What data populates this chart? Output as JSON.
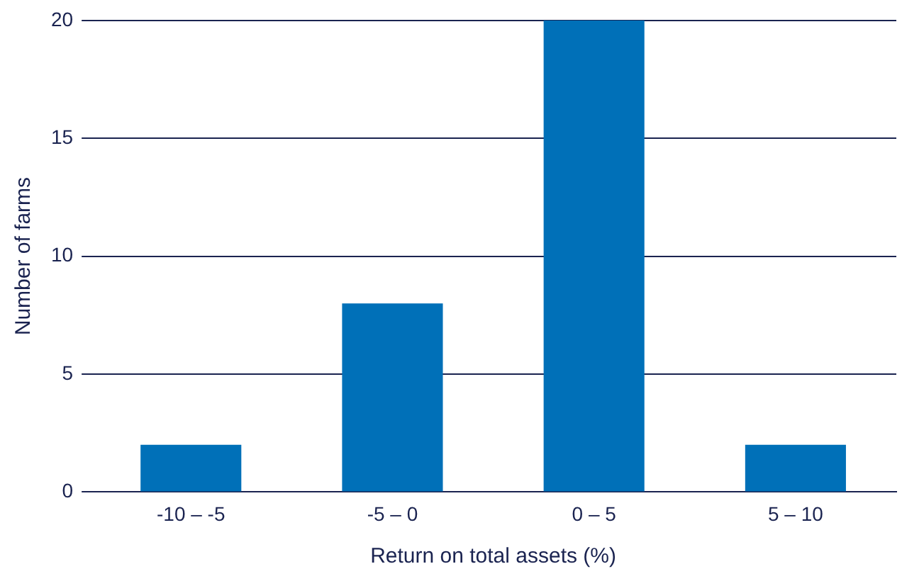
{
  "chart_data": {
    "type": "bar",
    "xlabel": "Return on total assets (%)",
    "ylabel": "Number of farms",
    "categories": [
      "-10 – -5",
      "-5 – 0",
      "0 – 5",
      "5 – 10"
    ],
    "values": [
      2,
      8,
      20,
      2
    ],
    "color": "#0070b8",
    "ylim": [
      0,
      20
    ],
    "yticks": [
      0,
      5,
      10,
      15,
      20
    ],
    "grid": "y",
    "legend": false
  }
}
